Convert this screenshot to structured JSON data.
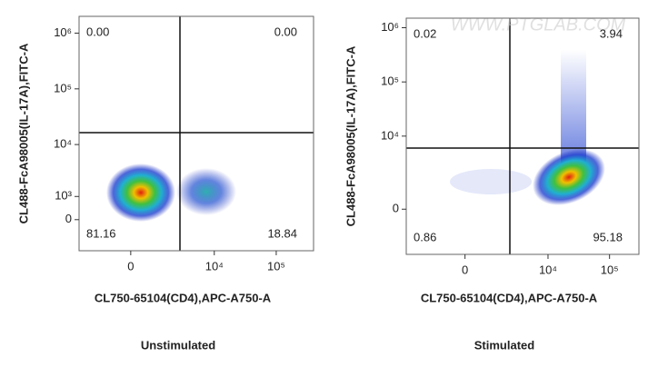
{
  "chart_data": [
    {
      "type": "scatter",
      "caption": "Unstimulated",
      "x_label": "CL750-65104(CD4),APC-A750-A",
      "y_label": "CL488-FcA98005(IL-17A),FITC-A",
      "quadrant_labels": [
        "0.00",
        "0.00",
        "81.16",
        "18.84"
      ],
      "xlim": [
        -3000,
        400000
      ],
      "ylim": [
        -1500,
        2000000
      ],
      "xticks": [
        0,
        {
          "value": 10000,
          "label": "10⁴"
        },
        {
          "value": 100000,
          "label": "10⁵"
        }
      ],
      "yticks": [
        0,
        {
          "value": 1000,
          "label": "10³"
        },
        {
          "value": 10000,
          "label": "10⁴"
        },
        {
          "value": 100000,
          "label": "10⁵"
        },
        {
          "value": 1000000,
          "label": "10⁶"
        }
      ]
    },
    {
      "type": "scatter",
      "caption": "Stimulated",
      "x_label": "CL750-65104(CD4),APC-A750-A",
      "y_label": "CL488-FcA98005(IL-17A),FITC-A",
      "quadrant_labels": [
        "0.02",
        "3.94",
        "0.86",
        "95.18"
      ],
      "xlim": [
        -4000,
        300000
      ],
      "ylim": [
        -3000,
        1500000
      ],
      "xticks": [
        0,
        {
          "value": 10000,
          "label": "10⁴"
        },
        {
          "value": 100000,
          "label": "10⁵"
        }
      ],
      "yticks": [
        0,
        {
          "value": 10000,
          "label": "10⁴"
        },
        {
          "value": 100000,
          "label": "10⁵"
        },
        {
          "value": 1000000,
          "label": "10⁶"
        }
      ]
    }
  ],
  "watermark": "WWW.PTGLAB.COM"
}
